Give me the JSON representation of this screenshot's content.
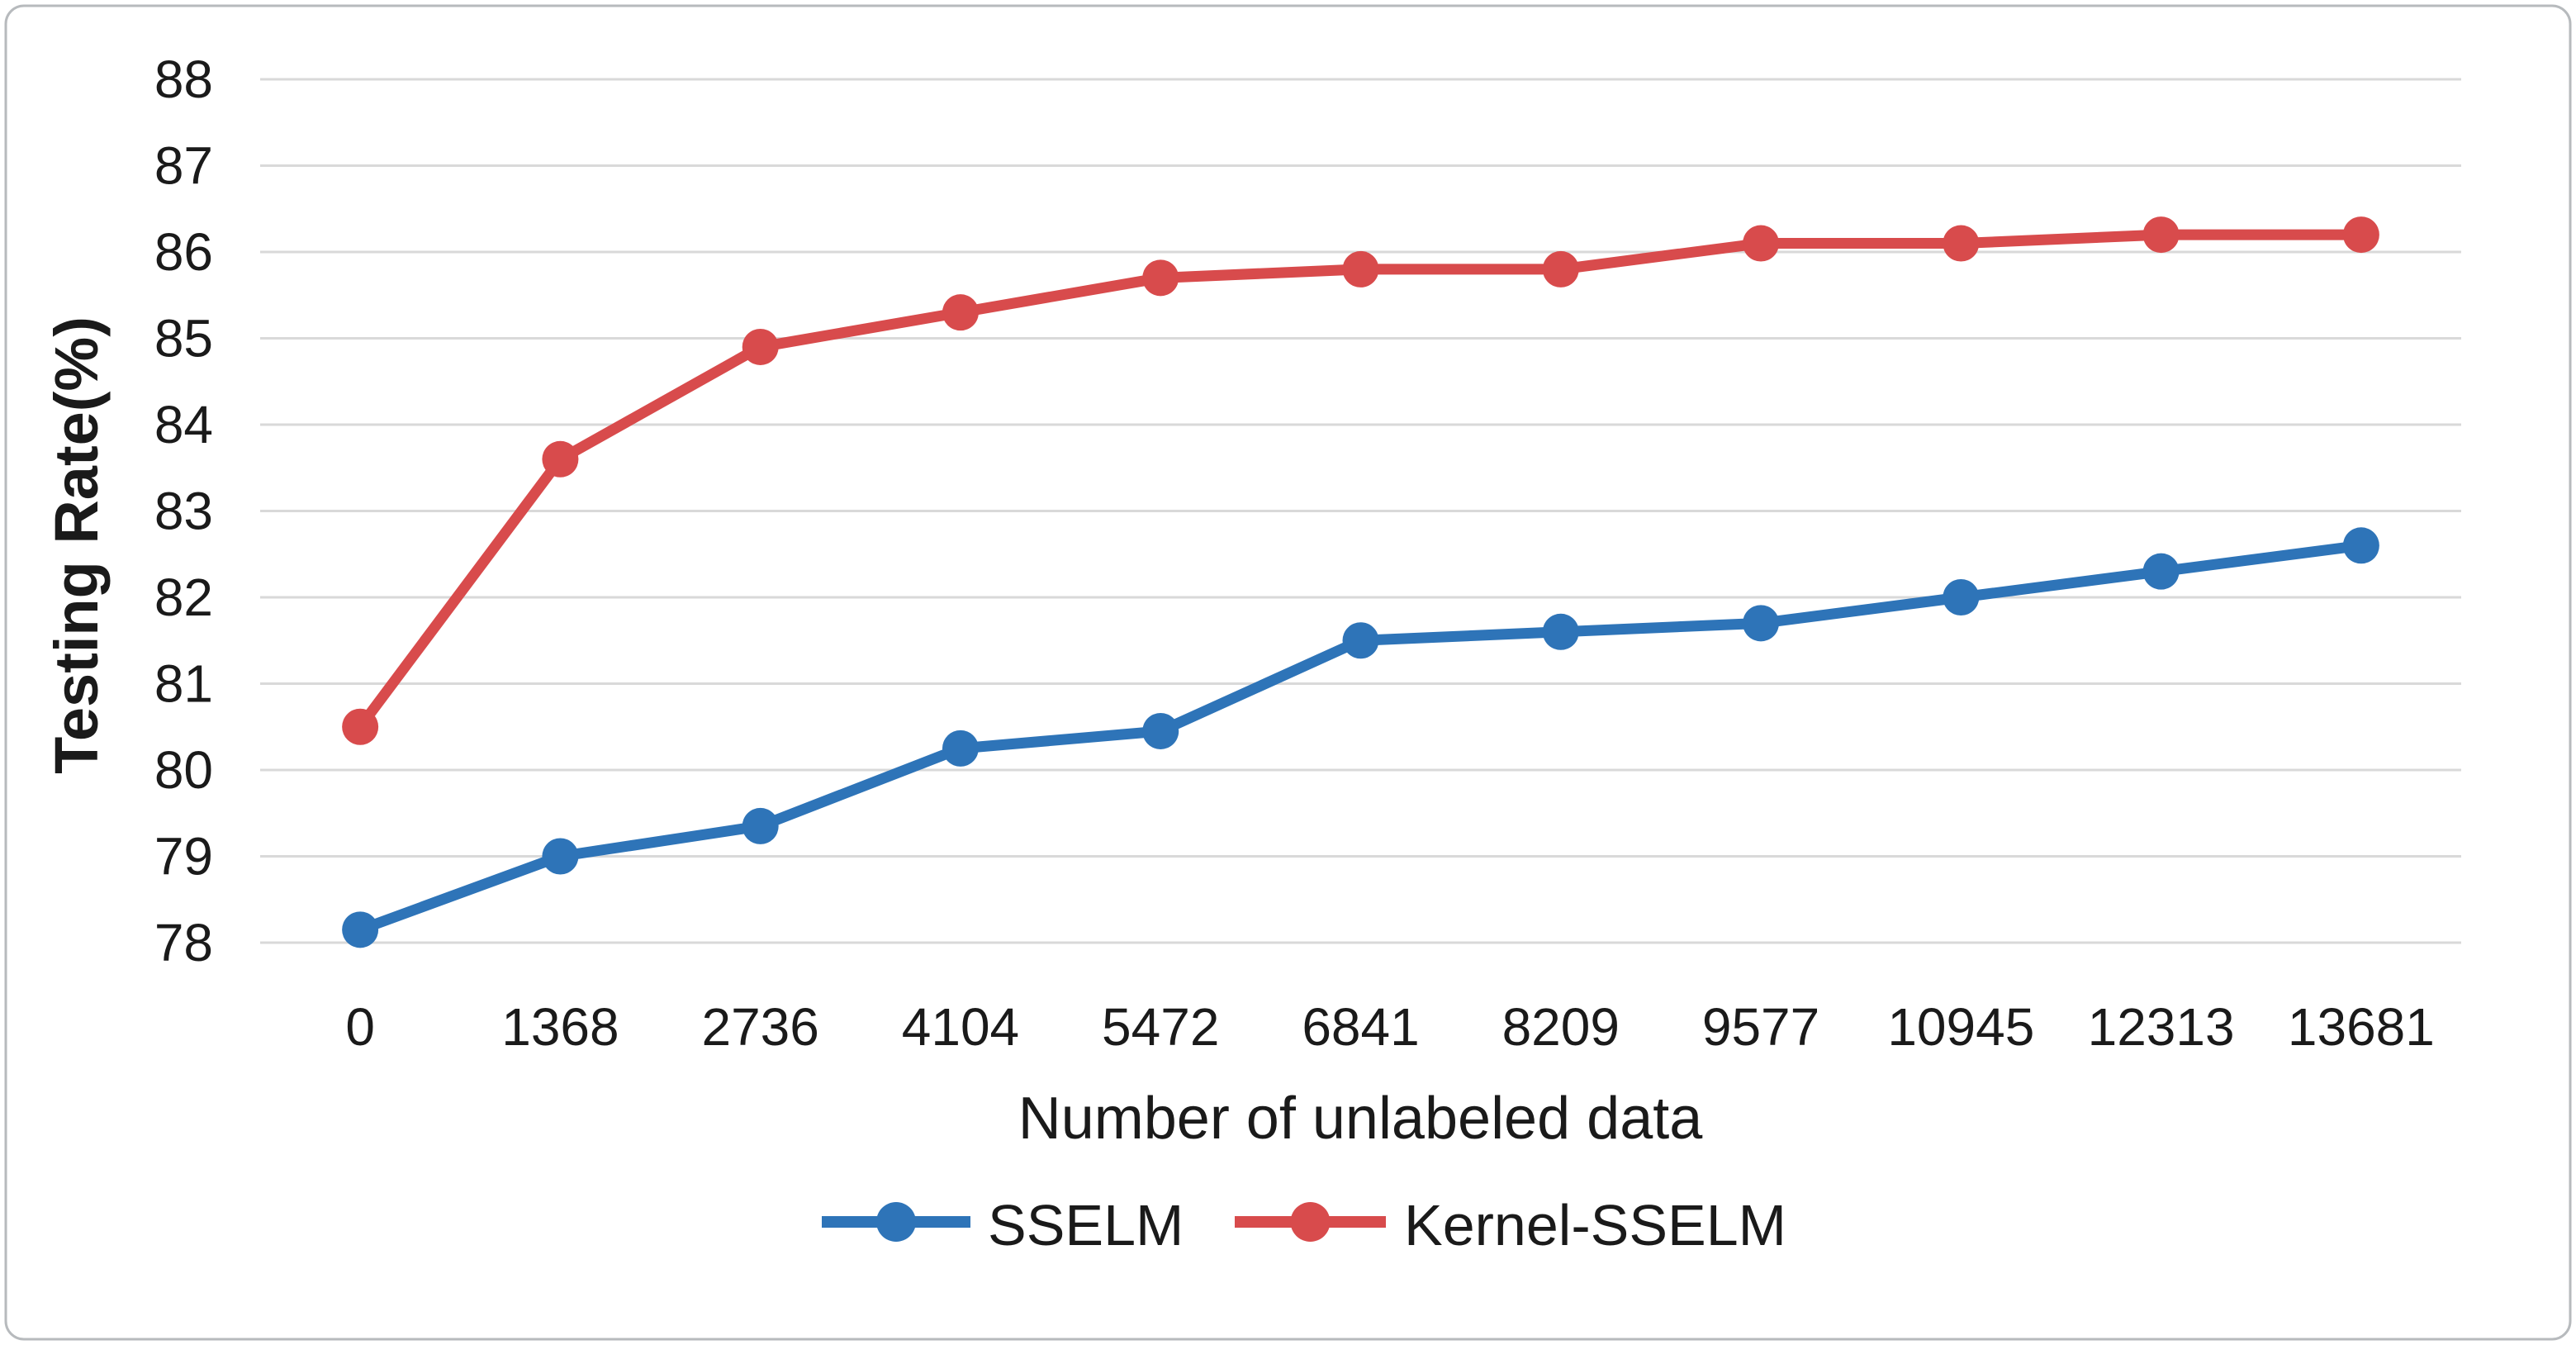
{
  "figure": {
    "background": "#ffffff",
    "border_color": "#b7babd",
    "gridline_color": "#d9d9d9"
  },
  "chart_data": {
    "type": "line",
    "title": "",
    "xlabel": "Number of unlabeled data",
    "ylabel": "Testing Rate(%)",
    "x_categories": [
      "0",
      "1368",
      "2736",
      "4104",
      "5472",
      "6841",
      "8209",
      "9577",
      "10945",
      "12313",
      "13681"
    ],
    "y_ticks": [
      78,
      79,
      80,
      81,
      82,
      83,
      84,
      85,
      86,
      87,
      88
    ],
    "ylim": [
      78,
      88
    ],
    "grid": "horizontal",
    "legend_position": "bottom",
    "series": [
      {
        "name": "SSELM",
        "color": "#2E74B8",
        "marker": "circle",
        "values": [
          78.15,
          79.0,
          79.35,
          80.25,
          80.45,
          81.5,
          81.6,
          81.7,
          82.0,
          82.3,
          82.6
        ]
      },
      {
        "name": "Kernel-SSELM",
        "color": "#D84B4C",
        "marker": "circle",
        "values": [
          80.5,
          83.6,
          84.9,
          85.3,
          85.7,
          85.8,
          85.8,
          86.1,
          86.1,
          86.2,
          86.2
        ]
      }
    ]
  }
}
